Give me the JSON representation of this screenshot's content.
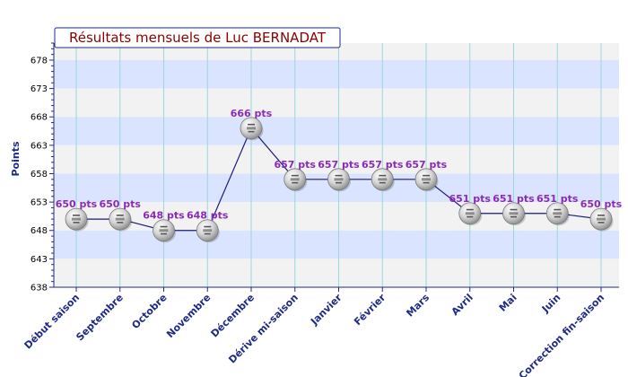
{
  "chart_data": {
    "type": "line",
    "title": "Résultats mensuels de Luc BERNADAT",
    "ylabel": "Points",
    "xlabel": "",
    "ylim": [
      638,
      681
    ],
    "yticks": [
      638,
      643,
      648,
      653,
      658,
      663,
      668,
      673,
      678
    ],
    "categories": [
      "Début saison",
      "Septembre",
      "Octobre",
      "Novembre",
      "Décembre",
      "Dérive mi-saison",
      "Janvier",
      "Février",
      "Mars",
      "Avril",
      "Mai",
      "Juin",
      "Correction fin-saison"
    ],
    "values": [
      650,
      650,
      648,
      648,
      666,
      657,
      657,
      657,
      657,
      651,
      651,
      651,
      650
    ],
    "point_labels": [
      "650 pts",
      "650 pts",
      "648 pts",
      "648 pts",
      "666 pts",
      "657 pts",
      "657 pts",
      "657 pts",
      "657 pts",
      "651 pts",
      "651 pts",
      "651 pts",
      "650 pts"
    ],
    "grid": true,
    "colors": {
      "line": "#1a1a7a",
      "band": "#dbe4ff",
      "band_alt": "#f2f2f2",
      "gridline": "#9ad6de",
      "axis": "#1f2a86",
      "label": "#8a2bb8",
      "title": "#8b0000"
    }
  }
}
